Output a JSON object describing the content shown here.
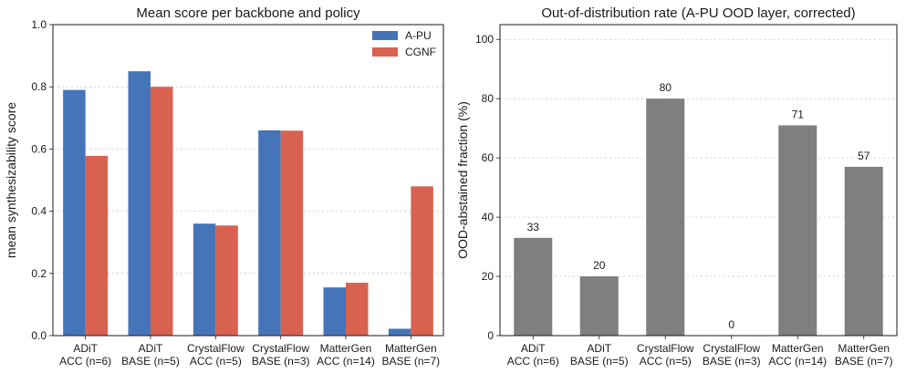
{
  "chart_data": [
    {
      "type": "bar",
      "title": "Mean score per backbone and policy",
      "xlabel": "",
      "ylabel": "mean synthesizability score",
      "ylim": [
        0,
        1.0
      ],
      "yticks": [
        "0.0",
        "0.2",
        "0.4",
        "0.6",
        "0.8",
        "1.0"
      ],
      "grid": "y-dotted",
      "legend_position": "top-right",
      "categories": [
        [
          "ADiT",
          "ACC (n=6)"
        ],
        [
          "ADiT",
          "BASE (n=5)"
        ],
        [
          "CrystalFlow",
          "ACC (n=5)"
        ],
        [
          "CrystalFlow",
          "BASE (n=3)"
        ],
        [
          "MatterGen",
          "ACC (n=14)"
        ],
        [
          "MatterGen",
          "BASE (n=7)"
        ]
      ],
      "series": [
        {
          "name": "A-PU",
          "color": "#4674b8",
          "values": [
            0.79,
            0.85,
            0.36,
            0.66,
            0.155,
            0.022
          ]
        },
        {
          "name": "CGNF",
          "color": "#d96150",
          "values": [
            0.578,
            0.8,
            0.354,
            0.659,
            0.17,
            0.48
          ]
        }
      ]
    },
    {
      "type": "bar",
      "title": "Out-of-distribution rate (A-PU OOD layer, corrected)",
      "xlabel": "",
      "ylabel": "OOD-abstained fraction (%)",
      "ylim": [
        0,
        105
      ],
      "yticks": [
        "0",
        "20",
        "40",
        "60",
        "80",
        "100"
      ],
      "grid": "y-dotted",
      "categories": [
        [
          "ADiT",
          "ACC (n=6)"
        ],
        [
          "ADiT",
          "BASE (n=5)"
        ],
        [
          "CrystalFlow",
          "ACC (n=5)"
        ],
        [
          "CrystalFlow",
          "BASE (n=3)"
        ],
        [
          "MatterGen",
          "ACC (n=14)"
        ],
        [
          "MatterGen",
          "BASE (n=7)"
        ]
      ],
      "color": "#7f7f7f",
      "values": [
        33,
        20,
        80,
        0,
        71,
        57
      ],
      "data_labels": [
        "33",
        "20",
        "80",
        "0",
        "71",
        "57"
      ]
    }
  ]
}
